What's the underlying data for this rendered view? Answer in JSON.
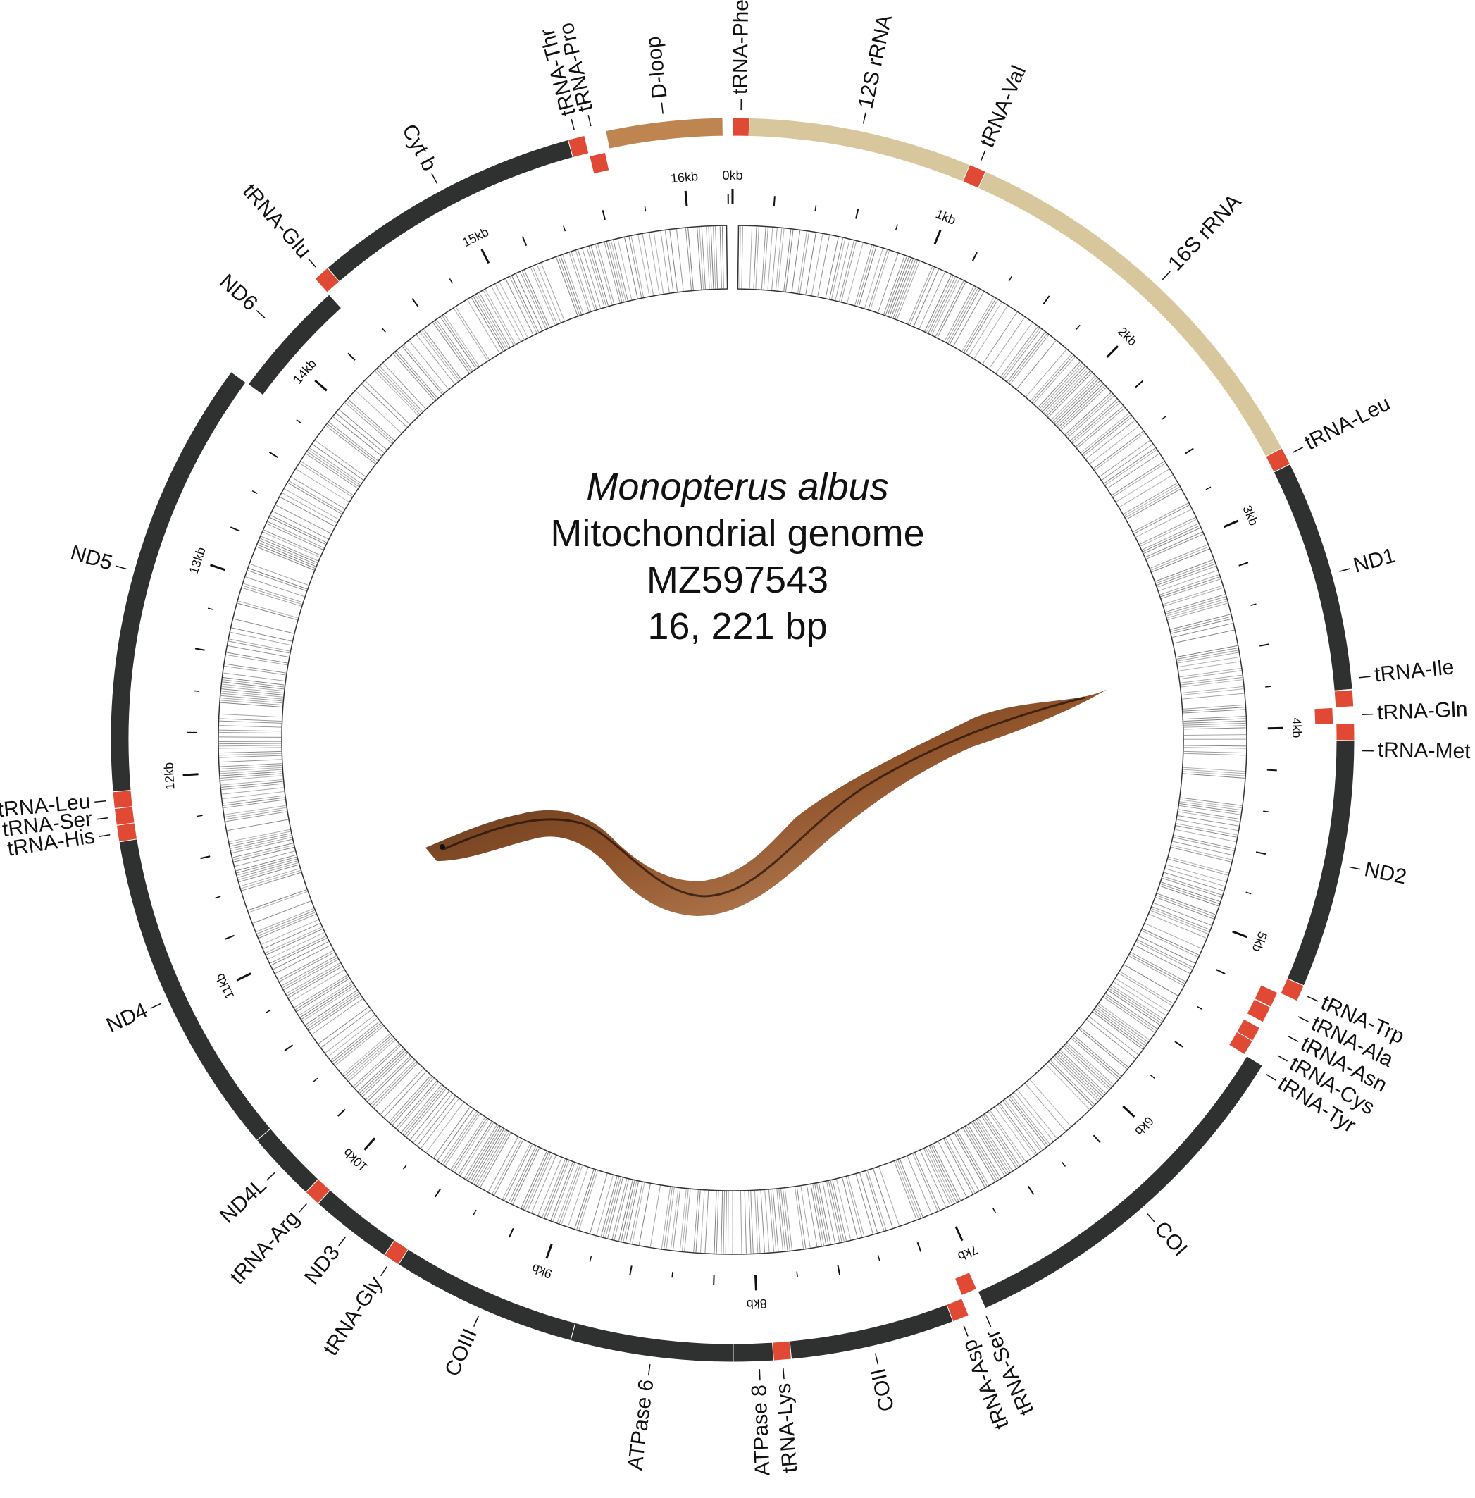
{
  "title": {
    "species": "Monopterus albus",
    "subtitle": "Mitochondrial genome",
    "accession": "MZ597543",
    "length_label": "16, 221 bp"
  },
  "genome_length_bp": 16221,
  "colors": {
    "protein_coding": "#2f3130",
    "trna": "#e04a35",
    "rrna": "#d8c79c",
    "dloop": "#bf8550",
    "gc_track_stroke": "#333333"
  },
  "ticks": {
    "major_labels": [
      "0kb",
      "1kb",
      "2kb",
      "3kb",
      "4kb",
      "5kb",
      "6kb",
      "7kb",
      "8kb",
      "9kb",
      "10kb",
      "11kb",
      "12kb",
      "13kb",
      "14kb",
      "15kb",
      "16kb"
    ]
  },
  "features": [
    {
      "name": "tRNA-Phe",
      "type": "trna",
      "start": 0,
      "end": 70,
      "offset": 0,
      "lane": 0
    },
    {
      "name": "12S rRNA",
      "type": "rrna",
      "start": 70,
      "end": 1010,
      "offset": 0,
      "lane": 0
    },
    {
      "name": "tRNA-Val",
      "type": "trna",
      "start": 1010,
      "end": 1082,
      "offset": 0,
      "lane": 0
    },
    {
      "name": "16S rRNA",
      "type": "rrna",
      "start": 1082,
      "end": 2795,
      "offset": 0,
      "lane": 0
    },
    {
      "name": "tRNA-Leu",
      "type": "trna",
      "start": 2795,
      "end": 2870,
      "offset": 0,
      "lane": 0
    },
    {
      "name": "ND1",
      "type": "protein_coding",
      "start": 2870,
      "end": 3845,
      "offset": 0,
      "lane": 0
    },
    {
      "name": "tRNA-Ile",
      "type": "trna",
      "start": 3847,
      "end": 3917,
      "offset": 0,
      "lane": 0
    },
    {
      "name": "tRNA-Gln",
      "type": "trna",
      "start": 3917,
      "end": 3987,
      "offset": -1,
      "lane": 0
    },
    {
      "name": "tRNA-Met",
      "type": "trna",
      "start": 3988,
      "end": 4058,
      "offset": 0,
      "lane": 0
    },
    {
      "name": "ND2",
      "type": "protein_coding",
      "start": 4058,
      "end": 5104,
      "offset": 0,
      "lane": 0
    },
    {
      "name": "tRNA-Trp",
      "type": "trna",
      "start": 5104,
      "end": 5174,
      "offset": 0,
      "lane": 0
    },
    {
      "name": "tRNA-Ala",
      "type": "trna",
      "start": 5176,
      "end": 5244,
      "offset": -1,
      "lane": 0
    },
    {
      "name": "tRNA-Asn",
      "type": "trna",
      "start": 5246,
      "end": 5318,
      "offset": -1,
      "lane": 0
    },
    {
      "name": "tRNA-Cys",
      "type": "trna",
      "start": 5345,
      "end": 5410,
      "offset": -1,
      "lane": 0
    },
    {
      "name": "tRNA-Tyr",
      "type": "trna",
      "start": 5410,
      "end": 5478,
      "offset": -1,
      "lane": 0
    },
    {
      "name": "COI",
      "type": "protein_coding",
      "start": 5478,
      "end": 7030,
      "offset": 0,
      "lane": 0
    },
    {
      "name": "tRNA-Ser",
      "type": "trna",
      "start": 7030,
      "end": 7100,
      "offset": -1,
      "lane": 0
    },
    {
      "name": "tRNA-Asp",
      "type": "trna",
      "start": 7105,
      "end": 7175,
      "offset": 0,
      "lane": 0
    },
    {
      "name": "COII",
      "type": "protein_coding",
      "start": 7175,
      "end": 7866,
      "offset": 0,
      "lane": 0
    },
    {
      "name": "tRNA-Lys",
      "type": "trna",
      "start": 7866,
      "end": 7940,
      "offset": 0,
      "lane": 0
    },
    {
      "name": "ATPase 8",
      "type": "protein_coding",
      "start": 7940,
      "end": 8108,
      "offset": 0,
      "lane": 0
    },
    {
      "name": "ATPase 6",
      "type": "protein_coding",
      "start": 8108,
      "end": 8791,
      "offset": 0,
      "lane": 0
    },
    {
      "name": "COIII",
      "type": "protein_coding",
      "start": 8791,
      "end": 9575,
      "offset": 0,
      "lane": 0
    },
    {
      "name": "tRNA-Gly",
      "type": "trna",
      "start": 9575,
      "end": 9645,
      "offset": 0,
      "lane": 0
    },
    {
      "name": "ND3",
      "type": "protein_coding",
      "start": 9645,
      "end": 9994,
      "offset": 0,
      "lane": 0
    },
    {
      "name": "tRNA-Arg",
      "type": "trna",
      "start": 9994,
      "end": 10063,
      "offset": 0,
      "lane": 0
    },
    {
      "name": "ND4L",
      "type": "protein_coding",
      "start": 10063,
      "end": 10360,
      "offset": 0,
      "lane": 0
    },
    {
      "name": "ND4",
      "type": "protein_coding",
      "start": 10360,
      "end": 11740,
      "offset": 0,
      "lane": 0
    },
    {
      "name": "tRNA-His",
      "type": "trna",
      "start": 11740,
      "end": 11810,
      "offset": 0,
      "lane": 0
    },
    {
      "name": "tRNA-Ser",
      "type": "trna",
      "start": 11810,
      "end": 11880,
      "offset": 0,
      "lane": 0
    },
    {
      "name": "tRNA-Leu",
      "type": "trna",
      "start": 11880,
      "end": 11950,
      "offset": 0,
      "lane": 0
    },
    {
      "name": "ND5",
      "type": "protein_coding",
      "start": 11950,
      "end": 13800,
      "offset": 0,
      "lane": 0
    },
    {
      "name": "ND6",
      "type": "protein_coding",
      "start": 13800,
      "end": 14320,
      "offset": -1,
      "lane": 0
    },
    {
      "name": "tRNA-Glu",
      "type": "trna",
      "start": 14320,
      "end": 14390,
      "offset": 0,
      "lane": 0
    },
    {
      "name": "Cyt b",
      "type": "protein_coding",
      "start": 14390,
      "end": 15530,
      "offset": 0,
      "lane": 0
    },
    {
      "name": "tRNA-Thr",
      "type": "trna",
      "start": 15530,
      "end": 15600,
      "offset": 0,
      "lane": 0
    },
    {
      "name": "tRNA-Pro",
      "type": "trna",
      "start": 15600,
      "end": 15670,
      "offset": -1,
      "lane": 0
    },
    {
      "name": "D-loop",
      "type": "dloop",
      "start": 15690,
      "end": 16180,
      "offset": 0,
      "lane": 0
    }
  ],
  "labels": [
    {
      "text": "tRNA-Phe",
      "pos": 35,
      "rot": "radial"
    },
    {
      "text": "12S rRNA",
      "pos": 540,
      "rot": "radial"
    },
    {
      "text": "tRNA-Val",
      "pos": 1046,
      "rot": "radial"
    },
    {
      "text": "16S rRNA",
      "pos": 1940,
      "rot": "radial"
    },
    {
      "text": "tRNA-Leu",
      "pos": 2832,
      "rot": "tangent"
    },
    {
      "text": "ND1",
      "pos": 3357,
      "rot": "tangent"
    },
    {
      "text": "tRNA-Ile",
      "pos": 3800,
      "rot": "tangent"
    },
    {
      "text": "tRNA-Gln",
      "pos": 3952,
      "rot": "tangent"
    },
    {
      "text": "tRNA-Met",
      "pos": 4100,
      "rot": "tangent"
    },
    {
      "text": "ND2",
      "pos": 4580,
      "rot": "tangent"
    },
    {
      "text": "tRNA-Trp",
      "pos": 5139,
      "rot": "tangent"
    },
    {
      "text": "tRNA-Ala",
      "pos": 5230,
      "rot": "tangent"
    },
    {
      "text": "tRNA-Asn",
      "pos": 5320,
      "rot": "tangent"
    },
    {
      "text": "tRNA-Cys",
      "pos": 5410,
      "rot": "tangent"
    },
    {
      "text": "tRNA-Tyr",
      "pos": 5500,
      "rot": "tangent"
    },
    {
      "text": "COI",
      "pos": 6254,
      "rot": "tangent"
    },
    {
      "text": "tRNA-Ser",
      "pos": 7040,
      "rot": "radial"
    },
    {
      "text": "tRNA-Asp",
      "pos": 7140,
      "rot": "radial"
    },
    {
      "text": "COII",
      "pos": 7520,
      "rot": "radial"
    },
    {
      "text": "tRNA-Lys",
      "pos": 7903,
      "rot": "radial"
    },
    {
      "text": "ATPase 8",
      "pos": 8000,
      "rot": "radial"
    },
    {
      "text": "ATPase 6",
      "pos": 8450,
      "rot": "radial"
    },
    {
      "text": "COIII",
      "pos": 9183,
      "rot": "radial"
    },
    {
      "text": "tRNA-Gly",
      "pos": 9610,
      "rot": "radial"
    },
    {
      "text": "ND3",
      "pos": 9819,
      "rot": "radial"
    },
    {
      "text": "tRNA-Arg",
      "pos": 10028,
      "rot": "radial"
    },
    {
      "text": "ND4L",
      "pos": 10211,
      "rot": "radial"
    },
    {
      "text": "ND4",
      "pos": 11050,
      "rot": "tangent"
    },
    {
      "text": "tRNA-His",
      "pos": 11775,
      "rot": "tangent"
    },
    {
      "text": "tRNA-Ser",
      "pos": 11845,
      "rot": "tangent"
    },
    {
      "text": "tRNA-Leu",
      "pos": 11915,
      "rot": "tangent"
    },
    {
      "text": "ND5",
      "pos": 12875,
      "rot": "tangent"
    },
    {
      "text": "ND6",
      "pos": 14060,
      "rot": "tangent"
    },
    {
      "text": "tRNA-Glu",
      "pos": 14355,
      "rot": "tangent"
    },
    {
      "text": "Cyt b",
      "pos": 14960,
      "rot": "tangent"
    },
    {
      "text": "tRNA-Thr",
      "pos": 15565,
      "rot": "radial"
    },
    {
      "text": "tRNA-Pro",
      "pos": 15635,
      "rot": "radial"
    },
    {
      "text": "D-loop",
      "pos": 15935,
      "rot": "radial"
    }
  ]
}
